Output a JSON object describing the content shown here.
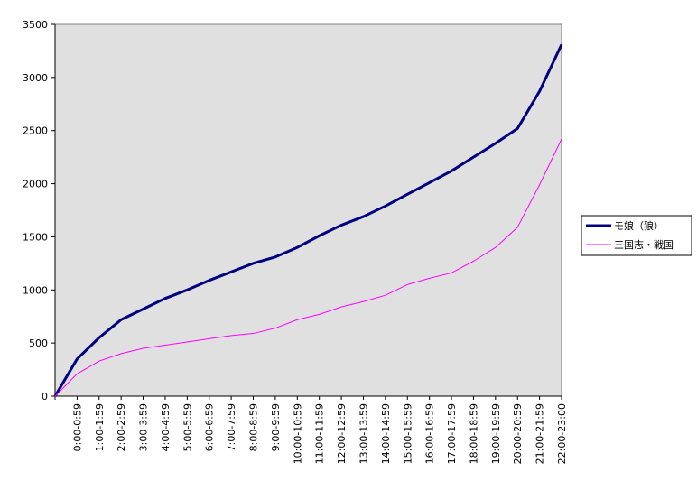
{
  "chart_data": {
    "type": "line",
    "title": "",
    "xlabel": "",
    "ylabel": "",
    "ylim": [
      0,
      3500
    ],
    "yticks": [
      0,
      500,
      1000,
      1500,
      2000,
      2500,
      3000,
      3500
    ],
    "grid": false,
    "legend_position": "right",
    "plot_background": "#e0e0e0",
    "x_points": [
      "",
      "0:00-0:59",
      "1:00-1:59",
      "2:00-2:59",
      "3:00-3:59",
      "4:00-4:59",
      "5:00-5:59",
      "6:00-6:59",
      "7:00-7:59",
      "8:00-8:59",
      "9:00-9:59",
      "10:00-10:59",
      "11:00-11:59",
      "12:00-12:59",
      "13:00-13:59",
      "14:00-14:59",
      "15:00-15:59",
      "16:00-16:59",
      "17:00-17:59",
      "18:00-18:59",
      "19:00-19:59",
      "20:00-20:59",
      "21:00-21:59",
      "22:00-23:00"
    ],
    "series": [
      {
        "name": "モ娘（狼）",
        "color": "#000080",
        "values": [
          0,
          350,
          550,
          720,
          820,
          920,
          1000,
          1090,
          1170,
          1250,
          1310,
          1400,
          1510,
          1610,
          1690,
          1790,
          1900,
          2010,
          2120,
          2250,
          2380,
          2520,
          2870,
          3310
        ]
      },
      {
        "name": "三国志・戦国",
        "color": "#ff00ff",
        "values": [
          0,
          210,
          330,
          400,
          450,
          480,
          510,
          540,
          570,
          590,
          640,
          720,
          770,
          840,
          890,
          950,
          1050,
          1110,
          1160,
          1270,
          1400,
          1590,
          1990,
          2420
        ]
      }
    ]
  }
}
